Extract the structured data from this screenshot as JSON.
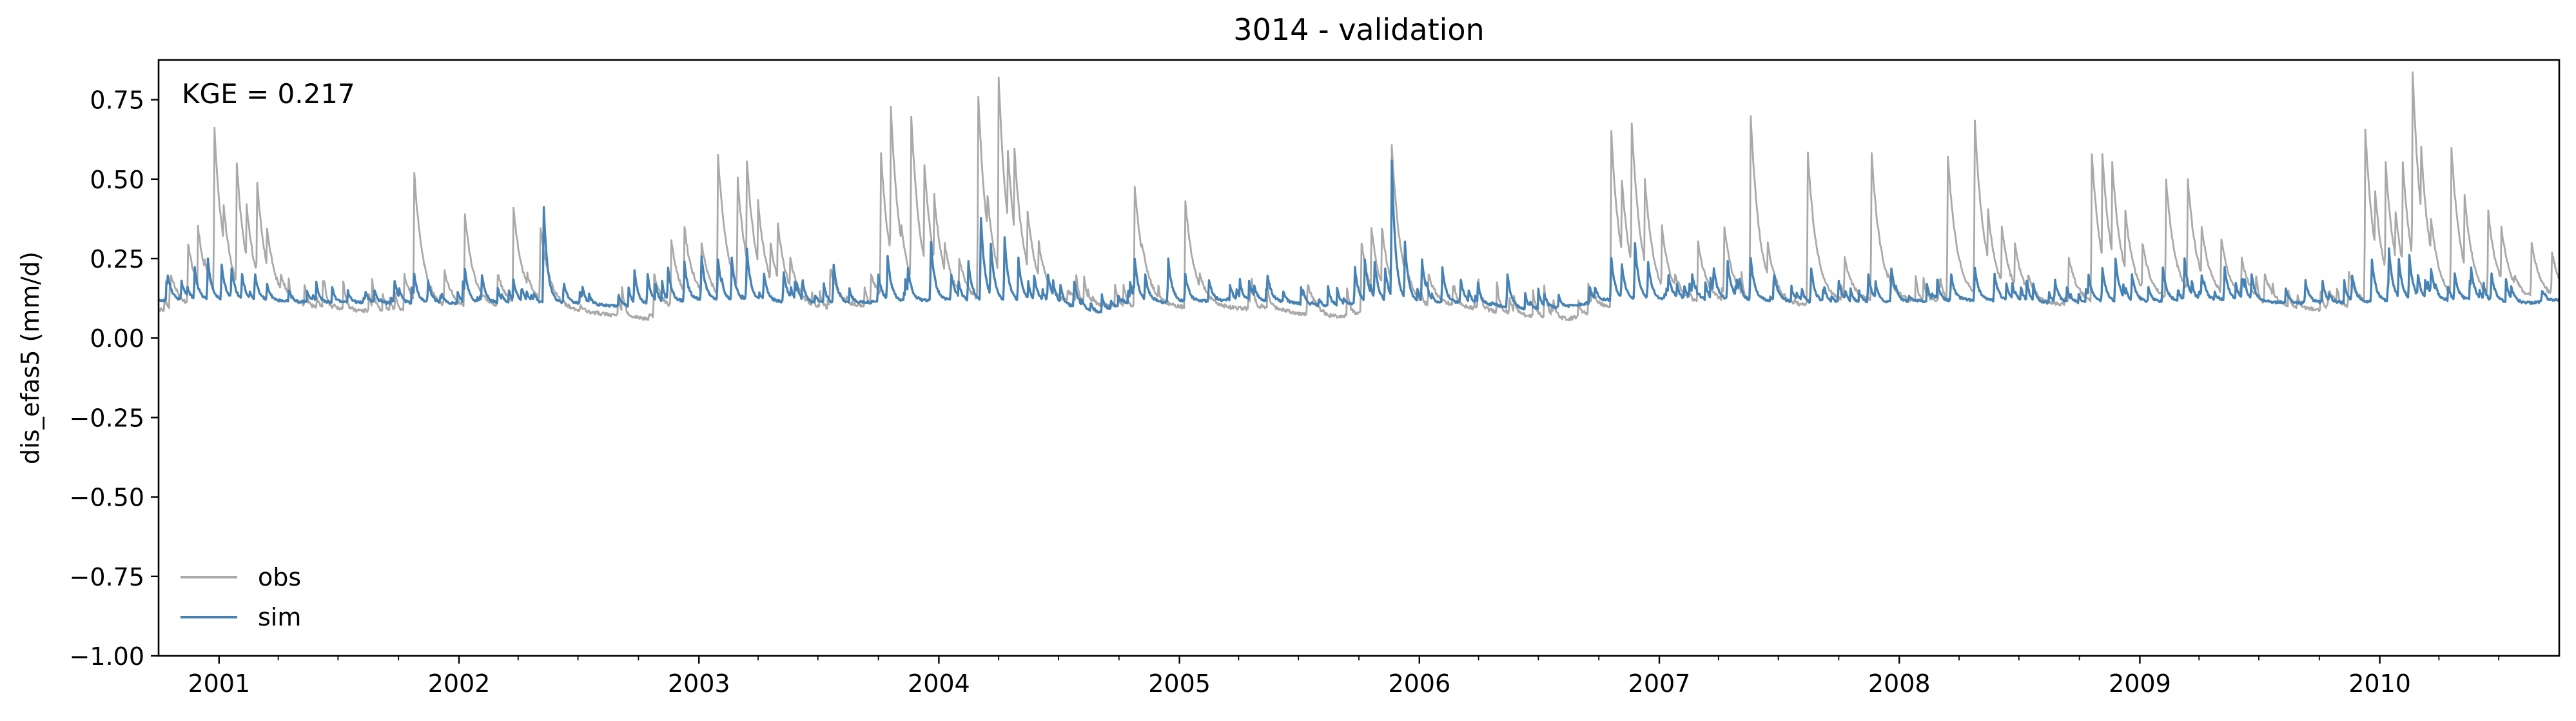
{
  "chart_data": {
    "type": "line",
    "title": "3014 - validation",
    "ylabel": "dis_efas5 (mm/d)",
    "xlabel": "",
    "annotation": "KGE = 0.217",
    "xlim": [
      "2000-10-01",
      "2010-10-01"
    ],
    "ylim": [
      -1.0,
      0.875
    ],
    "yticks": [
      -1.0,
      -0.75,
      -0.5,
      -0.25,
      0.0,
      0.25,
      0.5,
      0.75
    ],
    "ytick_labels": [
      "−1.00",
      "−0.75",
      "−0.50",
      "−0.25",
      "0.00",
      "0.25",
      "0.50",
      "0.75"
    ],
    "xticks": [
      "2001-01-01",
      "2002-01-01",
      "2003-01-01",
      "2004-01-01",
      "2005-01-01",
      "2006-01-01",
      "2007-01-01",
      "2008-01-01",
      "2009-01-01",
      "2010-01-01"
    ],
    "xtick_labels": [
      "2001",
      "2002",
      "2003",
      "2004",
      "2005",
      "2006",
      "2007",
      "2008",
      "2009",
      "2010"
    ],
    "legend": {
      "placement": "lower-left",
      "entries": [
        "obs",
        "sim"
      ]
    },
    "grid": false,
    "series": [
      {
        "name": "obs",
        "color": "#a9a9a9",
        "baseflow": [
          [
            "2000-10-01",
            0.09
          ],
          [
            "2001-05-01",
            0.1
          ],
          [
            "2001-09-15",
            0.08
          ],
          [
            "2002-05-01",
            0.1
          ],
          [
            "2002-09-01",
            0.07
          ],
          [
            "2002-10-15",
            0.06
          ],
          [
            "2003-01-01",
            0.11
          ],
          [
            "2003-07-01",
            0.09
          ],
          [
            "2003-09-15",
            0.1
          ],
          [
            "2004-07-01",
            0.11
          ],
          [
            "2004-10-01",
            0.1
          ],
          [
            "2005-06-01",
            0.09
          ],
          [
            "2005-08-15",
            0.06
          ],
          [
            "2005-10-15",
            0.08
          ],
          [
            "2006-03-01",
            0.1
          ],
          [
            "2006-06-15",
            0.07
          ],
          [
            "2006-08-15",
            0.06
          ],
          [
            "2006-10-15",
            0.09
          ],
          [
            "2007-03-01",
            0.11
          ],
          [
            "2007-08-01",
            0.1
          ],
          [
            "2007-10-15",
            0.11
          ],
          [
            "2008-05-01",
            0.12
          ],
          [
            "2008-07-01",
            0.1
          ],
          [
            "2009-05-01",
            0.12
          ],
          [
            "2009-07-15",
            0.1
          ],
          [
            "2009-10-01",
            0.09
          ],
          [
            "2010-05-01",
            0.11
          ],
          [
            "2010-10-01",
            0.12
          ]
        ],
        "peaks": [
          [
            "2000-10-20",
            0.2
          ],
          [
            "2000-11-15",
            0.3
          ],
          [
            "2000-11-30",
            0.35
          ],
          [
            "2000-12-10",
            0.25
          ],
          [
            "2000-12-25",
            0.66
          ],
          [
            "2001-01-08",
            0.42
          ],
          [
            "2001-01-28",
            0.55
          ],
          [
            "2001-02-12",
            0.42
          ],
          [
            "2001-02-28",
            0.49
          ],
          [
            "2001-03-15",
            0.35
          ],
          [
            "2001-04-05",
            0.2
          ],
          [
            "2001-10-10",
            0.2
          ],
          [
            "2001-10-25",
            0.52
          ],
          [
            "2001-12-10",
            0.21
          ],
          [
            "2002-01-10",
            0.39
          ],
          [
            "2002-03-01",
            0.2
          ],
          [
            "2002-03-25",
            0.41
          ],
          [
            "2002-04-15",
            0.2
          ],
          [
            "2002-05-05",
            0.35
          ],
          [
            "2002-10-25",
            0.2
          ],
          [
            "2002-11-20",
            0.31
          ],
          [
            "2002-12-10",
            0.35
          ],
          [
            "2003-01-05",
            0.3
          ],
          [
            "2003-01-30",
            0.58
          ],
          [
            "2003-03-01",
            0.5
          ],
          [
            "2003-03-15",
            0.56
          ],
          [
            "2003-04-01",
            0.43
          ],
          [
            "2003-04-20",
            0.3
          ],
          [
            "2003-05-01",
            0.36
          ],
          [
            "2003-05-20",
            0.25
          ],
          [
            "2003-07-20",
            0.22
          ],
          [
            "2003-09-20",
            0.2
          ],
          [
            "2003-10-05",
            0.58
          ],
          [
            "2003-10-20",
            0.73
          ],
          [
            "2003-11-05",
            0.35
          ],
          [
            "2003-11-20",
            0.7
          ],
          [
            "2003-12-10",
            0.55
          ],
          [
            "2003-12-25",
            0.45
          ],
          [
            "2004-01-10",
            0.3
          ],
          [
            "2004-02-01",
            0.25
          ],
          [
            "2004-03-01",
            0.76
          ],
          [
            "2004-03-15",
            0.45
          ],
          [
            "2004-04-01",
            0.82
          ],
          [
            "2004-04-15",
            0.59
          ],
          [
            "2004-04-25",
            0.6
          ],
          [
            "2004-05-15",
            0.4
          ],
          [
            "2004-06-01",
            0.3
          ],
          [
            "2004-07-15",
            0.15
          ],
          [
            "2004-10-25",
            0.48
          ],
          [
            "2004-11-05",
            0.3
          ],
          [
            "2005-01-10",
            0.43
          ],
          [
            "2005-02-01",
            0.2
          ],
          [
            "2005-07-15",
            0.17
          ],
          [
            "2005-10-05",
            0.3
          ],
          [
            "2005-10-20",
            0.35
          ],
          [
            "2005-11-05",
            0.35
          ],
          [
            "2005-11-20",
            0.61
          ],
          [
            "2005-12-10",
            0.25
          ],
          [
            "2006-01-15",
            0.2
          ],
          [
            "2006-09-20",
            0.15
          ],
          [
            "2006-10-20",
            0.65
          ],
          [
            "2006-11-05",
            0.5
          ],
          [
            "2006-11-20",
            0.68
          ],
          [
            "2006-12-10",
            0.5
          ],
          [
            "2007-01-05",
            0.35
          ],
          [
            "2007-01-25",
            0.2
          ],
          [
            "2007-03-01",
            0.3
          ],
          [
            "2007-04-10",
            0.35
          ],
          [
            "2007-05-20",
            0.7
          ],
          [
            "2007-06-15",
            0.3
          ],
          [
            "2007-08-15",
            0.58
          ],
          [
            "2007-10-10",
            0.25
          ],
          [
            "2007-11-20",
            0.58
          ],
          [
            "2007-12-15",
            0.2
          ],
          [
            "2008-03-15",
            0.57
          ],
          [
            "2008-04-25",
            0.68
          ],
          [
            "2008-05-15",
            0.4
          ],
          [
            "2008-06-05",
            0.35
          ],
          [
            "2008-06-25",
            0.3
          ],
          [
            "2008-07-15",
            0.2
          ],
          [
            "2008-09-15",
            0.25
          ],
          [
            "2008-10-20",
            0.58
          ],
          [
            "2008-11-05",
            0.58
          ],
          [
            "2008-11-20",
            0.55
          ],
          [
            "2008-12-10",
            0.4
          ],
          [
            "2009-01-05",
            0.3
          ],
          [
            "2009-02-10",
            0.5
          ],
          [
            "2009-03-15",
            0.5
          ],
          [
            "2009-04-05",
            0.35
          ],
          [
            "2009-05-05",
            0.31
          ],
          [
            "2009-06-05",
            0.25
          ],
          [
            "2009-07-10",
            0.2
          ],
          [
            "2009-10-15",
            0.15
          ],
          [
            "2009-11-15",
            0.21
          ],
          [
            "2009-12-10",
            0.66
          ],
          [
            "2009-12-25",
            0.46
          ],
          [
            "2010-01-10",
            0.55
          ],
          [
            "2010-01-25",
            0.4
          ],
          [
            "2010-02-05",
            0.55
          ],
          [
            "2010-02-20",
            0.84
          ],
          [
            "2010-03-05",
            0.6
          ],
          [
            "2010-03-20",
            0.38
          ],
          [
            "2010-04-20",
            0.6
          ],
          [
            "2010-05-10",
            0.45
          ],
          [
            "2010-06-15",
            0.4
          ],
          [
            "2010-07-05",
            0.35
          ],
          [
            "2010-07-25",
            0.2
          ],
          [
            "2010-08-20",
            0.3
          ],
          [
            "2010-09-20",
            0.27
          ]
        ]
      },
      {
        "name": "sim",
        "color": "#4682b4",
        "baseflow": [
          [
            "2000-10-01",
            0.12
          ],
          [
            "2001-05-01",
            0.115
          ],
          [
            "2001-09-15",
            0.11
          ],
          [
            "2002-06-01",
            0.11
          ],
          [
            "2002-09-15",
            0.1
          ],
          [
            "2003-01-01",
            0.12
          ],
          [
            "2003-08-01",
            0.11
          ],
          [
            "2004-01-01",
            0.12
          ],
          [
            "2004-07-01",
            0.11
          ],
          [
            "2004-09-01",
            0.08
          ],
          [
            "2004-10-15",
            0.11
          ],
          [
            "2005-05-01",
            0.12
          ],
          [
            "2005-08-15",
            0.1
          ],
          [
            "2005-10-15",
            0.11
          ],
          [
            "2006-04-01",
            0.11
          ],
          [
            "2006-06-15",
            0.09
          ],
          [
            "2006-08-15",
            0.1
          ],
          [
            "2006-10-15",
            0.12
          ],
          [
            "2007-06-01",
            0.12
          ],
          [
            "2007-09-01",
            0.11
          ],
          [
            "2008-05-01",
            0.12
          ],
          [
            "2008-09-01",
            0.11
          ],
          [
            "2009-05-01",
            0.12
          ],
          [
            "2009-09-01",
            0.11
          ],
          [
            "2010-05-01",
            0.12
          ],
          [
            "2010-08-15",
            0.11
          ],
          [
            "2010-10-01",
            0.12
          ]
        ],
        "peaks": [
          [
            "2000-10-15",
            0.2
          ],
          [
            "2000-11-05",
            0.18
          ],
          [
            "2000-11-25",
            0.22
          ],
          [
            "2000-12-15",
            0.25
          ],
          [
            "2001-01-05",
            0.23
          ],
          [
            "2001-01-20",
            0.22
          ],
          [
            "2001-02-05",
            0.2
          ],
          [
            "2001-02-25",
            0.2
          ],
          [
            "2001-03-15",
            0.17
          ],
          [
            "2001-09-25",
            0.18
          ],
          [
            "2001-10-25",
            0.2
          ],
          [
            "2001-11-15",
            0.18
          ],
          [
            "2002-01-10",
            0.22
          ],
          [
            "2002-02-05",
            0.2
          ],
          [
            "2002-03-25",
            0.18
          ],
          [
            "2002-05-10",
            0.41
          ],
          [
            "2002-06-10",
            0.17
          ],
          [
            "2002-09-25",
            0.21
          ],
          [
            "2002-10-15",
            0.2
          ],
          [
            "2002-11-15",
            0.22
          ],
          [
            "2002-12-10",
            0.24
          ],
          [
            "2003-01-05",
            0.26
          ],
          [
            "2003-01-30",
            0.25
          ],
          [
            "2003-02-20",
            0.25
          ],
          [
            "2003-03-15",
            0.28
          ],
          [
            "2003-04-10",
            0.2
          ],
          [
            "2003-05-10",
            0.21
          ],
          [
            "2003-07-25",
            0.23
          ],
          [
            "2003-10-01",
            0.2
          ],
          [
            "2003-10-15",
            0.26
          ],
          [
            "2003-11-15",
            0.22
          ],
          [
            "2003-12-20",
            0.3
          ],
          [
            "2004-01-20",
            0.2
          ],
          [
            "2004-02-15",
            0.24
          ],
          [
            "2004-03-05",
            0.38
          ],
          [
            "2004-03-20",
            0.3
          ],
          [
            "2004-04-10",
            0.32
          ],
          [
            "2004-05-01",
            0.25
          ],
          [
            "2004-05-25",
            0.2
          ],
          [
            "2004-06-15",
            0.2
          ],
          [
            "2004-07-25",
            0.18
          ],
          [
            "2004-10-25",
            0.25
          ],
          [
            "2004-11-10",
            0.2
          ],
          [
            "2004-12-15",
            0.25
          ],
          [
            "2005-01-10",
            0.2
          ],
          [
            "2005-02-15",
            0.18
          ],
          [
            "2005-05-15",
            0.2
          ],
          [
            "2005-09-25",
            0.22
          ],
          [
            "2005-10-10",
            0.25
          ],
          [
            "2005-10-25",
            0.24
          ],
          [
            "2005-11-10",
            0.22
          ],
          [
            "2005-11-20",
            0.56
          ],
          [
            "2005-12-10",
            0.3
          ],
          [
            "2006-01-05",
            0.25
          ],
          [
            "2006-02-05",
            0.22
          ],
          [
            "2006-03-05",
            0.18
          ],
          [
            "2006-05-15",
            0.2
          ],
          [
            "2006-09-25",
            0.16
          ],
          [
            "2006-10-20",
            0.25
          ],
          [
            "2006-11-05",
            0.23
          ],
          [
            "2006-11-25",
            0.3
          ],
          [
            "2006-12-15",
            0.24
          ],
          [
            "2007-01-15",
            0.2
          ],
          [
            "2007-02-20",
            0.2
          ],
          [
            "2007-03-25",
            0.22
          ],
          [
            "2007-04-15",
            0.24
          ],
          [
            "2007-05-20",
            0.25
          ],
          [
            "2007-06-25",
            0.2
          ],
          [
            "2007-08-20",
            0.22
          ],
          [
            "2007-10-01",
            0.18
          ],
          [
            "2007-11-15",
            0.2
          ],
          [
            "2007-12-20",
            0.22
          ],
          [
            "2008-03-20",
            0.2
          ],
          [
            "2008-04-25",
            0.22
          ],
          [
            "2008-05-25",
            0.2
          ],
          [
            "2008-08-25",
            0.18
          ],
          [
            "2008-10-15",
            0.2
          ],
          [
            "2008-11-05",
            0.22
          ],
          [
            "2008-11-25",
            0.25
          ],
          [
            "2008-12-20",
            0.2
          ],
          [
            "2009-02-05",
            0.22
          ],
          [
            "2009-03-10",
            0.25
          ],
          [
            "2009-04-05",
            0.2
          ],
          [
            "2009-05-10",
            0.22
          ],
          [
            "2009-06-20",
            0.2
          ],
          [
            "2009-09-10",
            0.18
          ],
          [
            "2009-11-20",
            0.2
          ],
          [
            "2009-12-20",
            0.25
          ],
          [
            "2010-01-15",
            0.28
          ],
          [
            "2010-01-30",
            0.25
          ],
          [
            "2010-02-15",
            0.26
          ],
          [
            "2010-02-28",
            0.2
          ],
          [
            "2010-03-20",
            0.22
          ],
          [
            "2010-04-25",
            0.2
          ],
          [
            "2010-05-20",
            0.22
          ],
          [
            "2010-06-20",
            0.2
          ],
          [
            "2010-07-20",
            0.16
          ],
          [
            "2010-09-05",
            0.15
          ]
        ]
      }
    ]
  }
}
